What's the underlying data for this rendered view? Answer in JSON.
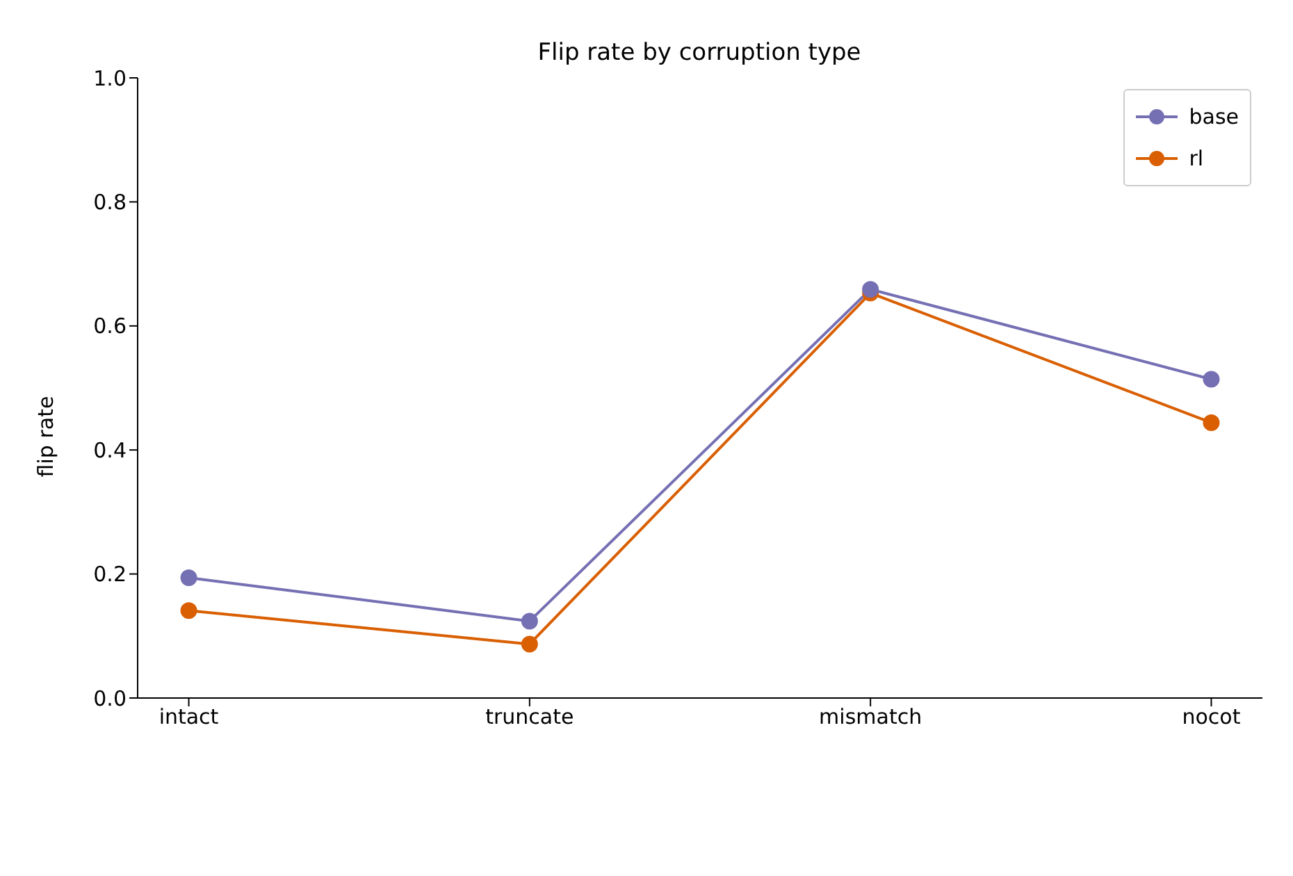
{
  "chart_data": {
    "type": "line",
    "title": "Flip rate by corruption type",
    "ylabel": "flip rate",
    "categories": [
      "intact",
      "truncate",
      "mismatch",
      "nocot"
    ],
    "series": [
      {
        "name": "base",
        "color": "#7570b3",
        "values": [
          0.194,
          0.124,
          0.659,
          0.514
        ]
      },
      {
        "name": "rl",
        "color": "#d95f02",
        "values": [
          0.141,
          0.087,
          0.653,
          0.444
        ]
      }
    ],
    "ylim": [
      0,
      1
    ],
    "yticks": [
      {
        "value": 0,
        "label": "0.0"
      },
      {
        "value": 0.2,
        "label": "0.2"
      },
      {
        "value": 0.4,
        "label": "0.4"
      },
      {
        "value": 0.6,
        "label": "0.6"
      },
      {
        "value": 0.8,
        "label": "0.8"
      },
      {
        "value": 1,
        "label": "1.0"
      }
    ],
    "grid": false,
    "legend": "top right",
    "marker": "circle",
    "line_style": "solid"
  }
}
